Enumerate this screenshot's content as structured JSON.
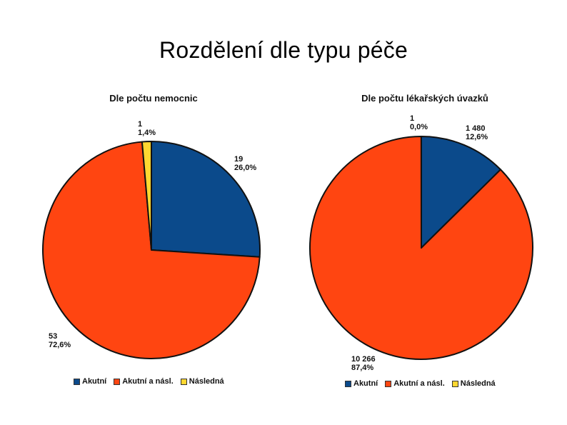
{
  "slide": {
    "title": "Rozdělení dle typu péče"
  },
  "colors": {
    "akutni": "#0b4a8b",
    "akutni_nasl": "#ff4511",
    "nasledna": "#ffd731"
  },
  "legend_labels": [
    "Akutní",
    "Akutní a násl.",
    "Následná"
  ],
  "chart_data": [
    {
      "type": "pie",
      "title": "Dle počtu nemocnic",
      "legend": "bottom",
      "slices": [
        {
          "category": "Akutní",
          "value": 19,
          "value_label": "19",
          "percent_label": "26,0%",
          "color": "#0b4a8b"
        },
        {
          "category": "Akutní a násl.",
          "value": 53,
          "value_label": "53",
          "percent_label": "72,6%",
          "color": "#ff4511"
        },
        {
          "category": "Následná",
          "value": 1,
          "value_label": "1",
          "percent_label": "1,4%",
          "color": "#ffd731"
        }
      ]
    },
    {
      "type": "pie",
      "title": "Dle počtu lékařských úvazků",
      "legend": "bottom",
      "slices": [
        {
          "category": "Akutní",
          "value": 1480,
          "value_label": "1 480",
          "percent_label": "12,6%",
          "color": "#0b4a8b"
        },
        {
          "category": "Akutní a násl.",
          "value": 10266,
          "value_label": "10 266",
          "percent_label": "87,4%",
          "color": "#ff4511"
        },
        {
          "category": "Následná",
          "value": 1,
          "value_label": "1",
          "percent_label": "0,0%",
          "color": "#ffd731"
        }
      ]
    }
  ]
}
